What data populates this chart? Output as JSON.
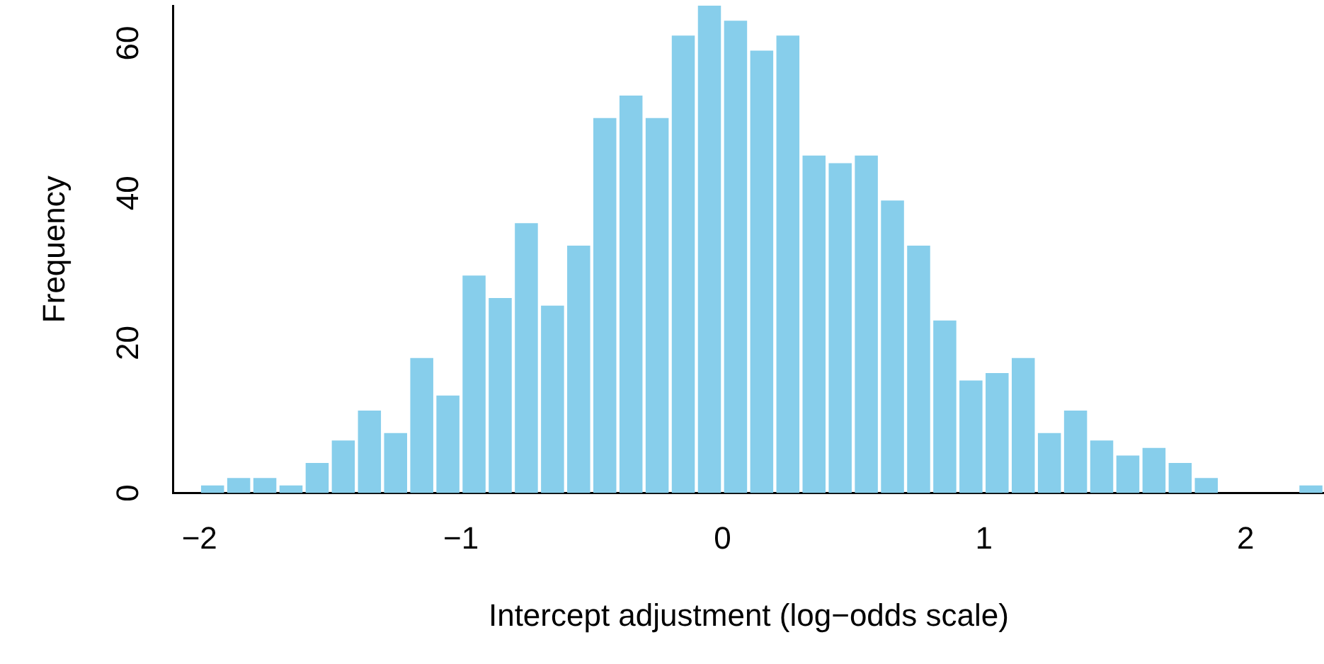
{
  "chart_data": {
    "type": "histogram",
    "xlabel": "Intercept adjustment (log−odds scale)",
    "ylabel": "Frequency",
    "bins": [
      -2.0,
      -1.9,
      -1.8,
      -1.7,
      -1.6,
      -1.5,
      -1.4,
      -1.3,
      -1.2,
      -1.1,
      -1.0,
      -0.9,
      -0.8,
      -0.7,
      -0.6,
      -0.5,
      -0.4,
      -0.3,
      -0.2,
      -0.1,
      0.0,
      0.1,
      0.2,
      0.3,
      0.4,
      0.5,
      0.6,
      0.7,
      0.8,
      0.9,
      1.0,
      1.1,
      1.2,
      1.3,
      1.4,
      1.5,
      1.6,
      1.7,
      1.8,
      1.9,
      2.0,
      2.1,
      2.2,
      2.3
    ],
    "values": [
      1,
      2,
      2,
      1,
      4,
      7,
      11,
      8,
      18,
      13,
      29,
      26,
      36,
      25,
      33,
      50,
      53,
      50,
      61,
      65,
      63,
      59,
      61,
      45,
      44,
      45,
      39,
      33,
      23,
      15,
      16,
      18,
      8,
      11,
      7,
      5,
      6,
      4,
      2,
      0,
      0,
      0,
      1
    ],
    "color": "#87ceeb",
    "xlim": [
      -2.1,
      2.3
    ],
    "xticks": [
      {
        "value": -2,
        "label": "−2"
      },
      {
        "value": -1,
        "label": "−1"
      },
      0,
      1,
      2
    ],
    "ylim": [
      0,
      65
    ],
    "yticks": [
      0,
      20,
      40,
      60
    ],
    "grid": false,
    "legend": false
  }
}
